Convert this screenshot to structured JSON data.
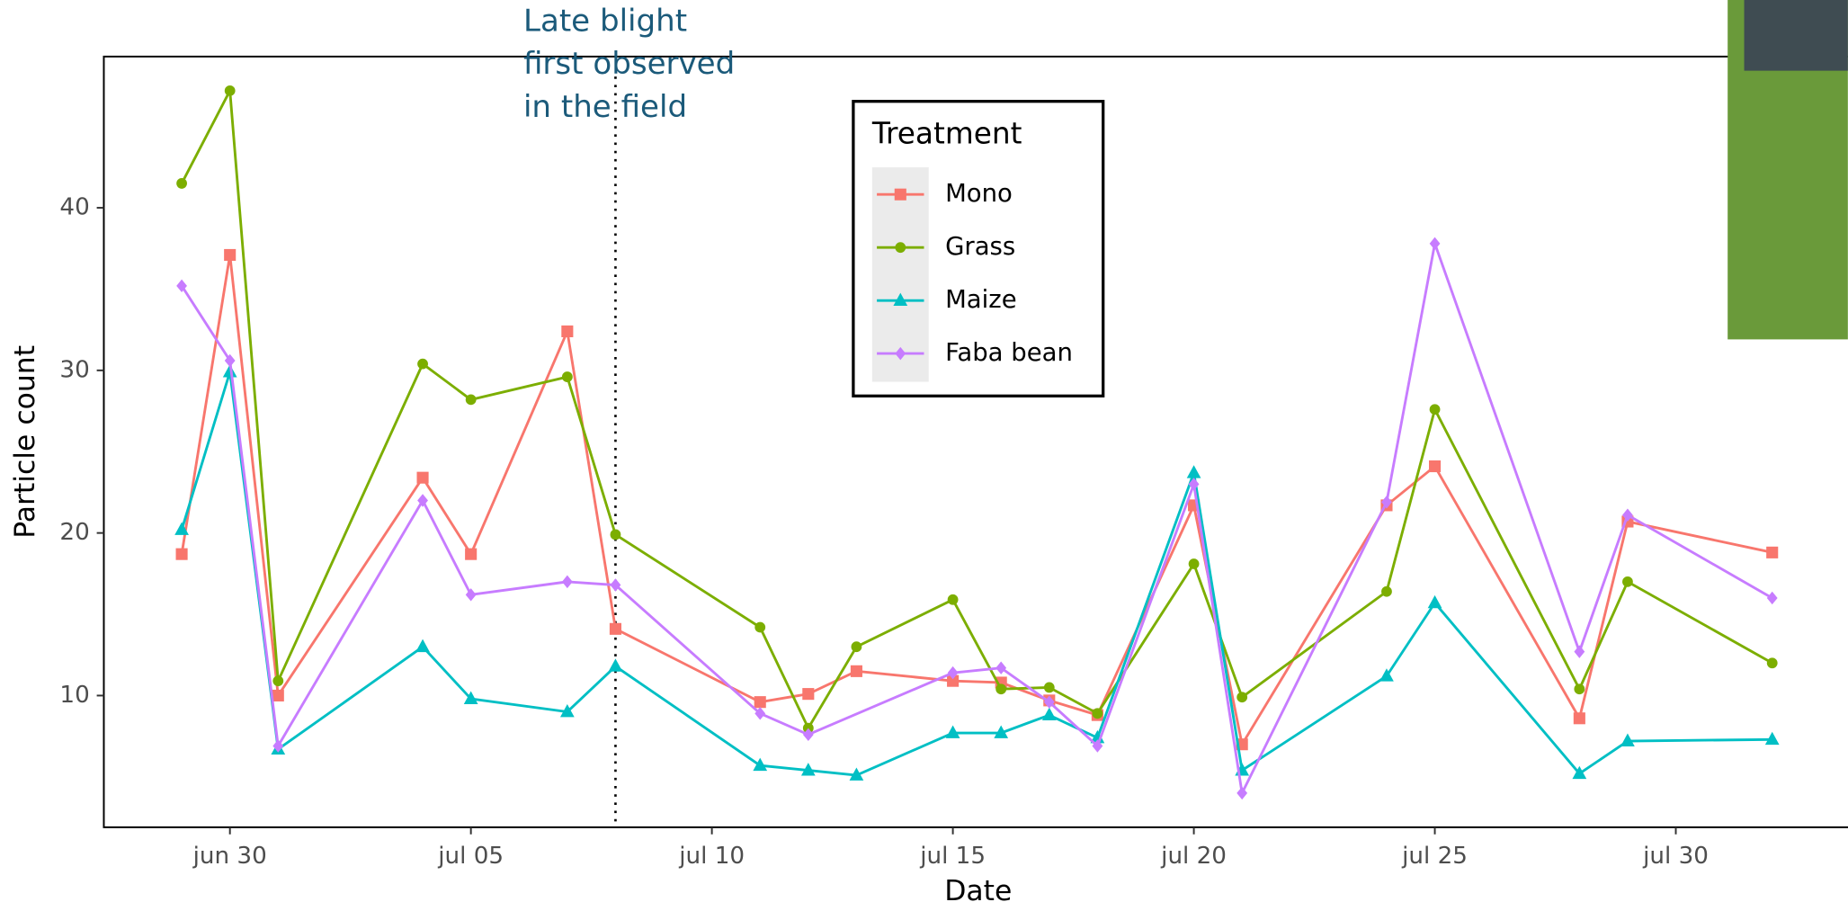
{
  "chart_data": {
    "type": "line",
    "annotation": [
      "Late blight",
      "first observed",
      "in the field"
    ],
    "annotation_x": "jul 08",
    "x_label": "Date",
    "y_label": "Particle count",
    "legend_title": "Treatment",
    "x": [
      "jun 29",
      "jun 30",
      "jul 01",
      "jul 04",
      "jul 05",
      "jul 07",
      "jul 08",
      "jul 11",
      "jul 12",
      "jul 13",
      "jul 15",
      "jul 16",
      "jul 17",
      "jul 18",
      "jul 20",
      "jul 21",
      "jul 24",
      "jul 25",
      "jul 28",
      "jul 29",
      "aug 01"
    ],
    "series": [
      {
        "name": "Mono",
        "color": "#F8766D",
        "marker": "square",
        "values": [
          18.7,
          37.1,
          10.0,
          23.4,
          18.7,
          32.4,
          14.1,
          9.6,
          10.1,
          11.5,
          10.9,
          10.8,
          9.7,
          8.8,
          21.7,
          7.0,
          21.7,
          24.1,
          8.6,
          20.7,
          18.8
        ]
      },
      {
        "name": "Grass",
        "color": "#7CAE00",
        "marker": "circle",
        "values": [
          41.5,
          47.2,
          10.9,
          30.4,
          28.2,
          29.6,
          19.9,
          14.2,
          8.0,
          13.0,
          15.9,
          10.4,
          10.5,
          8.9,
          18.1,
          9.9,
          16.4,
          27.6,
          10.4,
          17.0,
          12.0
        ]
      },
      {
        "name": "Maize",
        "color": "#00BFC4",
        "marker": "triangle",
        "values": [
          20.2,
          29.9,
          6.7,
          13.0,
          9.8,
          9.0,
          11.8,
          5.7,
          5.4,
          5.1,
          7.7,
          7.7,
          8.8,
          7.4,
          23.7,
          5.4,
          11.2,
          15.7,
          5.2,
          7.2,
          7.3
        ]
      },
      {
        "name": "Faba bean",
        "color": "#C77CFF",
        "marker": "diamond",
        "x": [
          "jun 29",
          "jun 30",
          "jul 01",
          "jul 04",
          "jul 05",
          "jul 07",
          "jul 08",
          "jul 11",
          "jul 12",
          "jul 15",
          "jul 16",
          "jul 17",
          "jul 18",
          "jul 20",
          "jul 21",
          "jul 24",
          "jul 25",
          "jul 28",
          "jul 29",
          "aug 01"
        ],
        "values": [
          35.2,
          30.6,
          6.9,
          22.0,
          16.2,
          17.0,
          16.8,
          8.9,
          7.6,
          11.4,
          11.7,
          9.6,
          6.9,
          23.0,
          4.0,
          21.9,
          37.8,
          12.7,
          21.1,
          16.0
        ]
      }
    ],
    "xlim": [
      "jun 27",
      "aug 02"
    ],
    "xticks": [
      "jun 30",
      "jul 05",
      "jul 10",
      "jul 15",
      "jul 20",
      "jul 25",
      "jul 30"
    ],
    "ylim": [
      1.9,
      49.3
    ],
    "yticks": [
      10,
      20,
      30,
      40
    ]
  }
}
